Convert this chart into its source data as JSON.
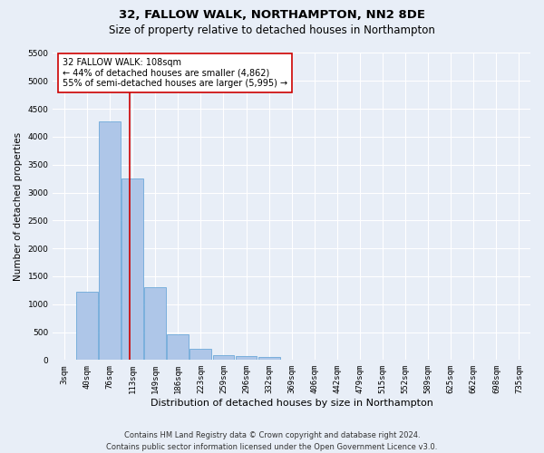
{
  "title": "32, FALLOW WALK, NORTHAMPTON, NN2 8DE",
  "subtitle": "Size of property relative to detached houses in Northampton",
  "xlabel": "Distribution of detached houses by size in Northampton",
  "ylabel": "Number of detached properties",
  "categories": [
    "3sqm",
    "40sqm",
    "76sqm",
    "113sqm",
    "149sqm",
    "186sqm",
    "223sqm",
    "259sqm",
    "296sqm",
    "332sqm",
    "369sqm",
    "406sqm",
    "442sqm",
    "479sqm",
    "515sqm",
    "552sqm",
    "589sqm",
    "625sqm",
    "662sqm",
    "698sqm",
    "735sqm"
  ],
  "values": [
    0,
    1230,
    4270,
    3250,
    1310,
    460,
    200,
    90,
    70,
    50,
    0,
    0,
    0,
    0,
    0,
    0,
    0,
    0,
    0,
    0,
    0
  ],
  "bar_color": "#aec6e8",
  "bar_edge_color": "#5a9fd4",
  "marker_label": "32 FALLOW WALK: 108sqm",
  "annotation_line1": "← 44% of detached houses are smaller (4,862)",
  "annotation_line2": "55% of semi-detached houses are larger (5,995) →",
  "red_line_color": "#cc0000",
  "annotation_box_color": "#ffffff",
  "annotation_box_edge": "#cc0000",
  "ylim": [
    0,
    5500
  ],
  "yticks": [
    0,
    500,
    1000,
    1500,
    2000,
    2500,
    3000,
    3500,
    4000,
    4500,
    5000,
    5500
  ],
  "footer_line1": "Contains HM Land Registry data © Crown copyright and database right 2024.",
  "footer_line2": "Contains public sector information licensed under the Open Government Licence v3.0.",
  "bg_color": "#e8eef7",
  "plot_bg_color": "#e8eef7",
  "grid_color": "#ffffff",
  "title_fontsize": 9.5,
  "subtitle_fontsize": 8.5,
  "xlabel_fontsize": 8,
  "ylabel_fontsize": 7.5,
  "tick_fontsize": 6.5,
  "annot_fontsize": 7,
  "footer_fontsize": 6
}
